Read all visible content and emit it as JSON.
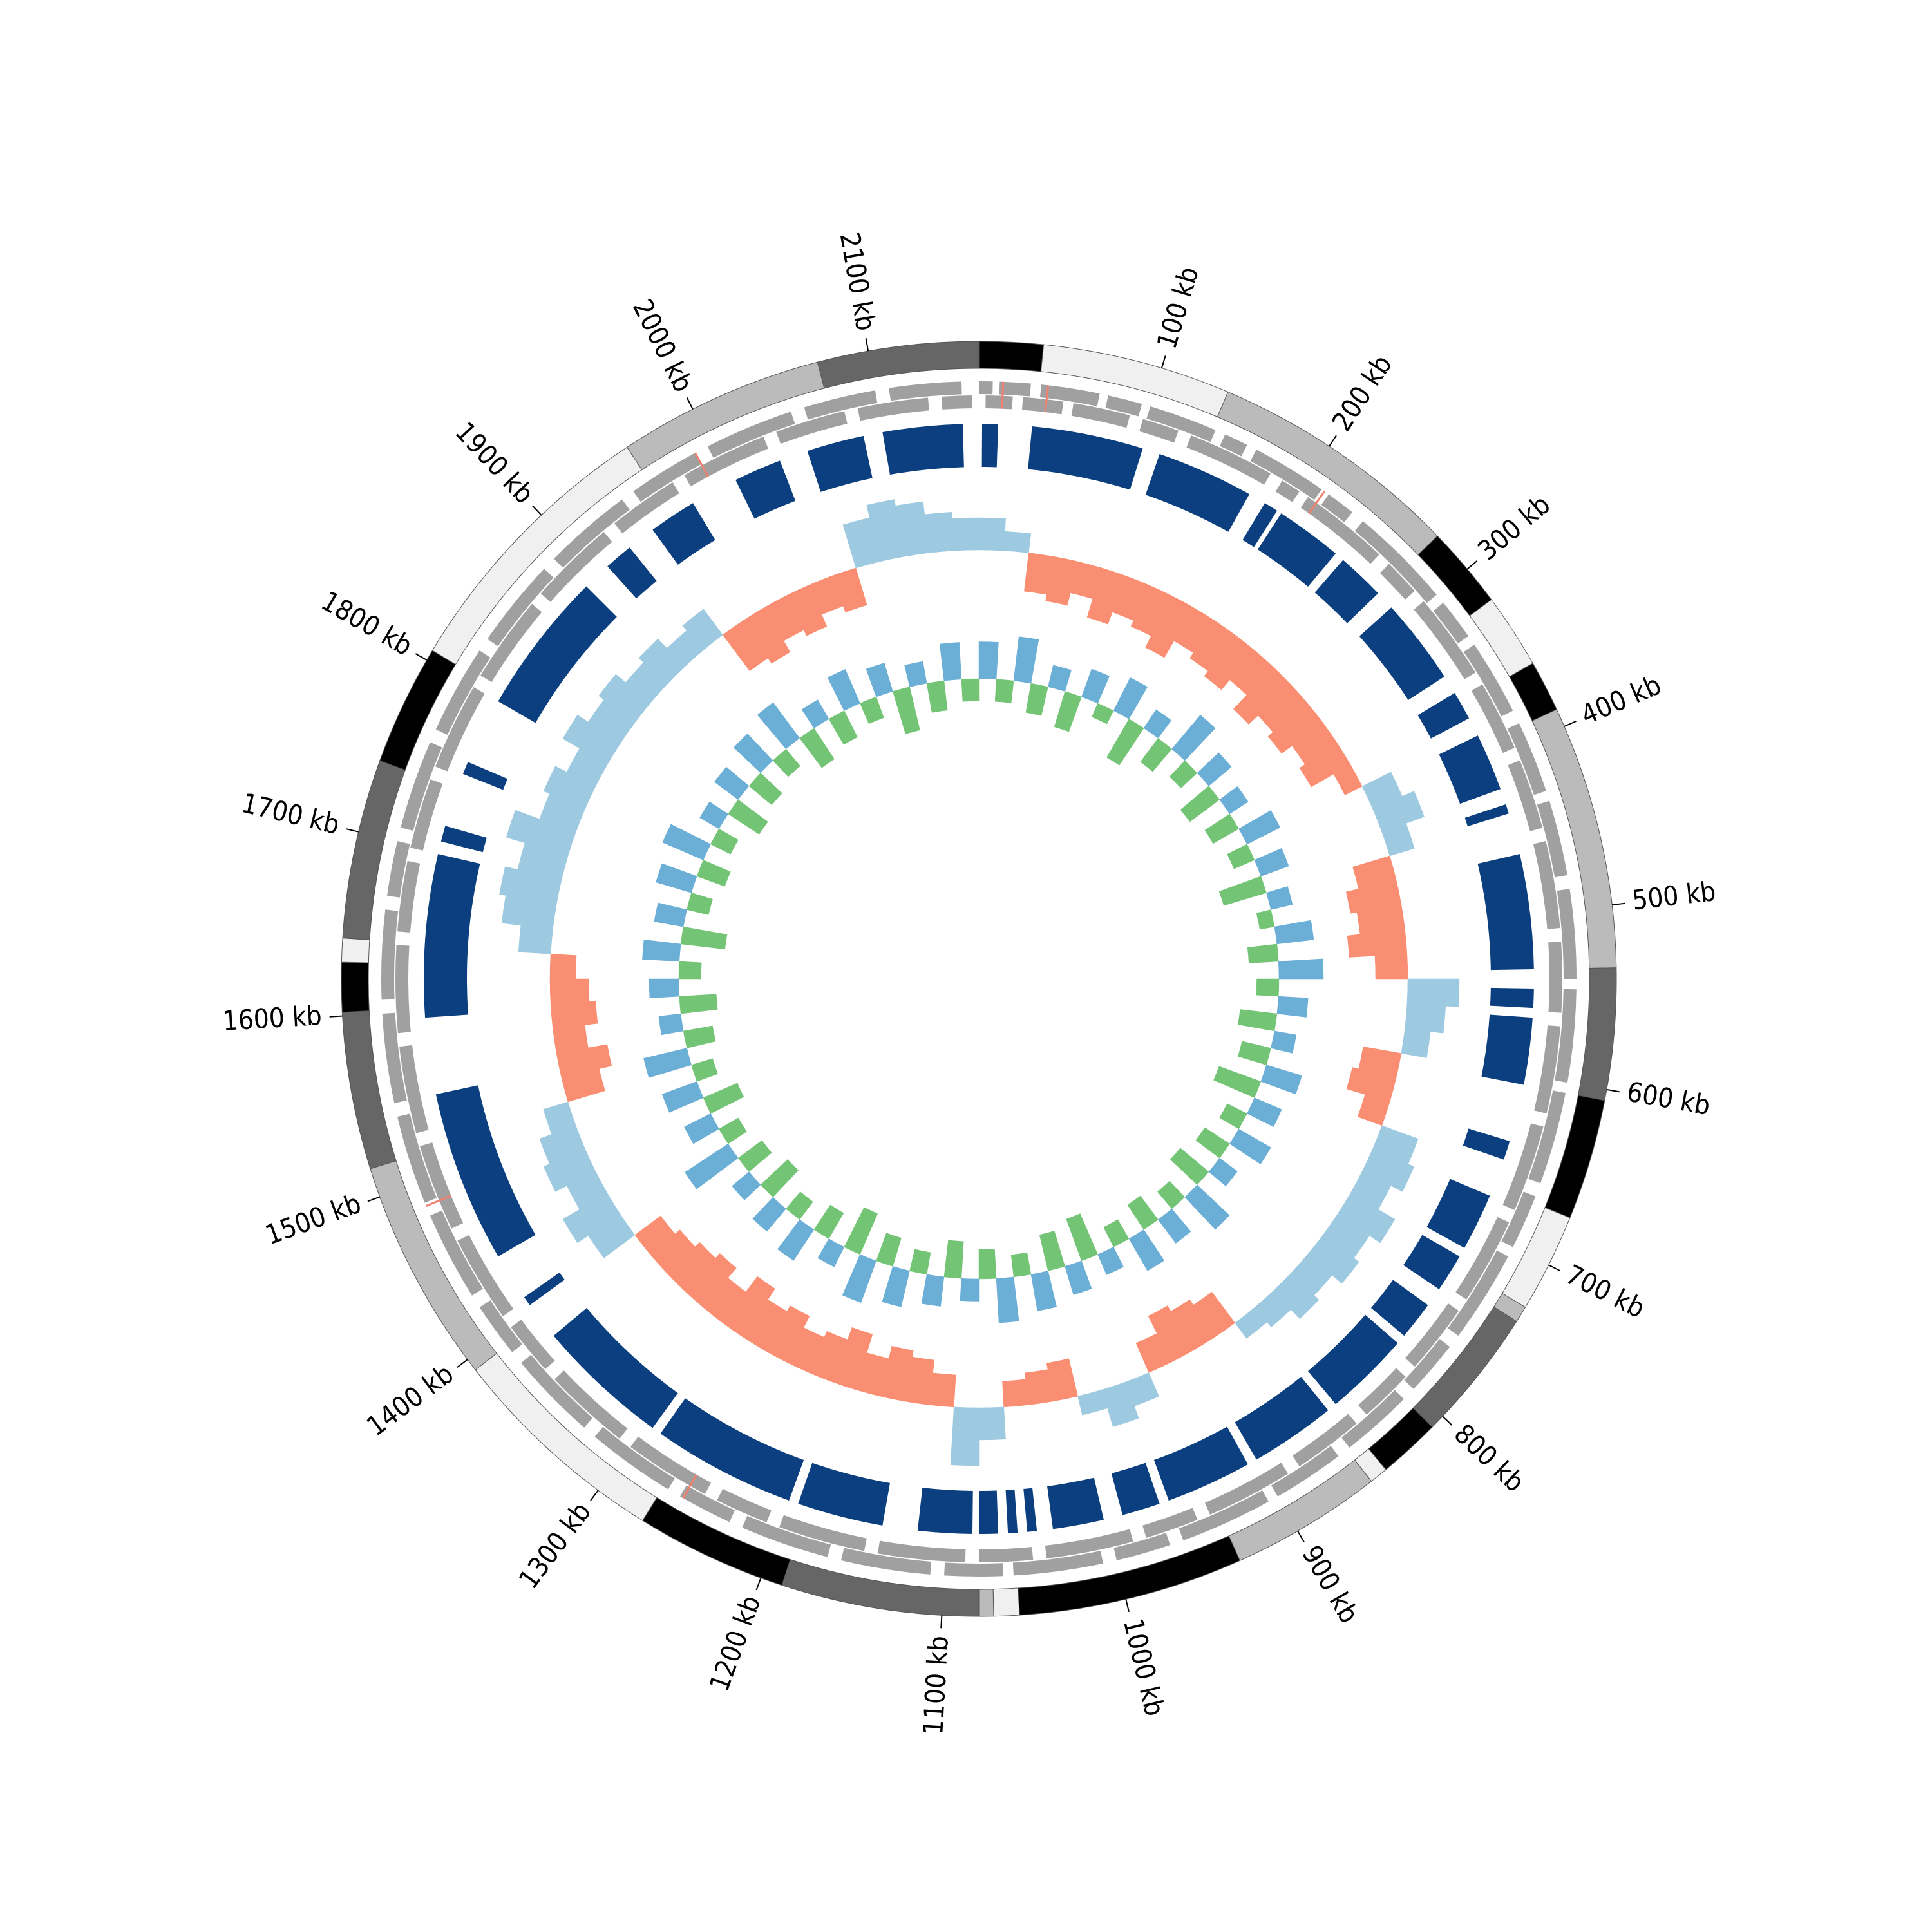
{
  "chart_data": {
    "type": "circular",
    "xlim": [
      0,
      2160
    ],
    "xticks": [
      {
        "value": 100,
        "label": "100 kb"
      },
      {
        "value": 200,
        "label": "200 kb"
      },
      {
        "value": 300,
        "label": "300 kb"
      },
      {
        "value": 400,
        "label": "400 kb"
      },
      {
        "value": 500,
        "label": "500 kb"
      },
      {
        "value": 600,
        "label": "600 kb"
      },
      {
        "value": 700,
        "label": "700 kb"
      },
      {
        "value": 800,
        "label": "800 kb"
      },
      {
        "value": 900,
        "label": "900 kb"
      },
      {
        "value": 1000,
        "label": "1000 kb"
      },
      {
        "value": 1100,
        "label": "1100 kb"
      },
      {
        "value": 1200,
        "label": "1200 kb"
      },
      {
        "value": 1300,
        "label": "1300 kb"
      },
      {
        "value": 1400,
        "label": "1400 kb"
      },
      {
        "value": 1500,
        "label": "1500 kb"
      },
      {
        "value": 1600,
        "label": "1600 kb"
      },
      {
        "value": 1700,
        "label": "1700 kb"
      },
      {
        "value": 1800,
        "label": "1800 kb"
      },
      {
        "value": 1900,
        "label": "1900 kb"
      },
      {
        "value": 2000,
        "label": "2000 kb"
      },
      {
        "value": 2100,
        "label": "2100 kb"
      }
    ],
    "bands": [
      {
        "start": 0,
        "end": 35,
        "color": "#000000"
      },
      {
        "start": 35,
        "end": 138,
        "color": "#f0f0f0"
      },
      {
        "start": 138,
        "end": 276,
        "color": "#bbbbbb"
      },
      {
        "start": 276,
        "end": 321,
        "color": "#000000"
      },
      {
        "start": 321,
        "end": 362,
        "color": "#f0f0f0"
      },
      {
        "start": 362,
        "end": 390,
        "color": "#000000"
      },
      {
        "start": 390,
        "end": 534,
        "color": "#bbbbbb"
      },
      {
        "start": 534,
        "end": 606,
        "color": "#666666"
      },
      {
        "start": 606,
        "end": 672,
        "color": "#000000"
      },
      {
        "start": 672,
        "end": 726,
        "color": "#f0f0f0"
      },
      {
        "start": 726,
        "end": 735,
        "color": "#bbbbbb"
      },
      {
        "start": 735,
        "end": 808,
        "color": "#666666"
      },
      {
        "start": 808,
        "end": 842,
        "color": "#000000"
      },
      {
        "start": 842,
        "end": 852,
        "color": "#f0f0f0"
      },
      {
        "start": 852,
        "end": 935,
        "color": "#bbbbbb"
      },
      {
        "start": 935,
        "end": 1058,
        "color": "#000000"
      },
      {
        "start": 1058,
        "end": 1072,
        "color": "#f0f0f0"
      },
      {
        "start": 1072,
        "end": 1080,
        "color": "#bbbbbb"
      },
      {
        "start": 1080,
        "end": 1188,
        "color": "#666666"
      },
      {
        "start": 1188,
        "end": 1271,
        "color": "#000000"
      },
      {
        "start": 1271,
        "end": 1393,
        "color": "#f0f0f0"
      },
      {
        "start": 1393,
        "end": 1516,
        "color": "#bbbbbb"
      },
      {
        "start": 1516,
        "end": 1602,
        "color": "#666666"
      },
      {
        "start": 1602,
        "end": 1629,
        "color": "#000000"
      },
      {
        "start": 1629,
        "end": 1642,
        "color": "#f0f0f0"
      },
      {
        "start": 1642,
        "end": 1740,
        "color": "#666666"
      },
      {
        "start": 1740,
        "end": 1806,
        "color": "#000000"
      },
      {
        "start": 1806,
        "end": 1959,
        "color": "#f0f0f0"
      },
      {
        "start": 1959,
        "end": 2072,
        "color": "#bbbbbb"
      },
      {
        "start": 2072,
        "end": 2160,
        "color": "#666666"
      }
    ],
    "gene_color": "#a0a0a0",
    "genes_forward": [
      [
        0,
        8
      ],
      [
        12,
        30
      ],
      [
        36,
        70
      ],
      [
        75,
        95
      ],
      [
        100,
        140
      ],
      [
        146,
        160
      ],
      [
        166,
        210
      ],
      [
        215,
        232
      ],
      [
        240,
        300
      ],
      [
        306,
        330
      ],
      [
        336,
        380
      ],
      [
        388,
        430
      ],
      [
        436,
        480
      ],
      [
        488,
        540
      ],
      [
        546,
        600
      ],
      [
        606,
        660
      ],
      [
        668,
        700
      ],
      [
        706,
        760
      ],
      [
        768,
        800
      ],
      [
        808,
        850
      ],
      [
        858,
        900
      ],
      [
        906,
        960
      ],
      [
        968,
        1000
      ],
      [
        1008,
        1060
      ],
      [
        1066,
        1100
      ],
      [
        1108,
        1160
      ],
      [
        1168,
        1220
      ],
      [
        1228,
        1260
      ],
      [
        1268,
        1320
      ],
      [
        1328,
        1380
      ],
      [
        1388,
        1420
      ],
      [
        1428,
        1480
      ],
      [
        1488,
        1540
      ],
      [
        1548,
        1600
      ],
      [
        1608,
        1660
      ],
      [
        1668,
        1700
      ],
      [
        1708,
        1760
      ],
      [
        1768,
        1820
      ],
      [
        1828,
        1880
      ],
      [
        1888,
        1940
      ],
      [
        1948,
        1990
      ],
      [
        1998,
        2050
      ],
      [
        2058,
        2100
      ],
      [
        2108,
        2150
      ]
    ],
    "genes_reverse": [
      [
        4,
        20
      ],
      [
        26,
        50
      ],
      [
        56,
        90
      ],
      [
        98,
        120
      ],
      [
        128,
        180
      ],
      [
        188,
        200
      ],
      [
        206,
        260
      ],
      [
        268,
        290
      ],
      [
        298,
        350
      ],
      [
        358,
        400
      ],
      [
        408,
        450
      ],
      [
        458,
        510
      ],
      [
        518,
        560
      ],
      [
        568,
        620
      ],
      [
        628,
        680
      ],
      [
        688,
        740
      ],
      [
        748,
        790
      ],
      [
        798,
        830
      ],
      [
        838,
        880
      ],
      [
        888,
        940
      ],
      [
        948,
        980
      ],
      [
        988,
        1040
      ],
      [
        1048,
        1080
      ],
      [
        1088,
        1140
      ],
      [
        1148,
        1200
      ],
      [
        1208,
        1240
      ],
      [
        1248,
        1300
      ],
      [
        1308,
        1360
      ],
      [
        1368,
        1400
      ],
      [
        1408,
        1460
      ],
      [
        1468,
        1520
      ],
      [
        1528,
        1580
      ],
      [
        1588,
        1640
      ],
      [
        1648,
        1690
      ],
      [
        1698,
        1740
      ],
      [
        1748,
        1800
      ],
      [
        1808,
        1860
      ],
      [
        1868,
        1920
      ],
      [
        1928,
        1970
      ],
      [
        1978,
        2030
      ],
      [
        2038,
        2080
      ],
      [
        2088,
        2130
      ],
      [
        2138,
        2156
      ]
    ],
    "rna_color": "#f08070",
    "rna_genes": [
      14,
      40,
      212,
      1258,
      1486,
      1990
    ],
    "block_color": "#0b3f7f",
    "blocks": [
      [
        2,
        12
      ],
      [
        33,
        103
      ],
      [
        114,
        175
      ],
      [
        186,
        195
      ],
      [
        198,
        240
      ],
      [
        246,
        276
      ],
      [
        288,
        342
      ],
      [
        354,
        372
      ],
      [
        384,
        420
      ],
      [
        430,
        436
      ],
      [
        462,
        534
      ],
      [
        546,
        558
      ],
      [
        564,
        606
      ],
      [
        642,
        654
      ],
      [
        678,
        714
      ],
      [
        720,
        744
      ],
      [
        756,
        780
      ],
      [
        786,
        840
      ],
      [
        846,
        900
      ],
      [
        906,
        960
      ],
      [
        966,
        990
      ],
      [
        1002,
        1034
      ],
      [
        1044,
        1050
      ],
      [
        1056,
        1062
      ],
      [
        1068,
        1080
      ],
      [
        1084,
        1118
      ],
      [
        1140,
        1194
      ],
      [
        1200,
        1290
      ],
      [
        1296,
        1380
      ],
      [
        1404,
        1410
      ],
      [
        1440,
        1548
      ],
      [
        1596,
        1698
      ],
      [
        1706,
        1716
      ],
      [
        1750,
        1758
      ],
      [
        1800,
        1890
      ],
      [
        1908,
        1926
      ],
      [
        1944,
        1974
      ],
      [
        2004,
        2034
      ],
      [
        2052,
        2088
      ],
      [
        2100,
        2150
      ]
    ],
    "gc_content": {
      "ylim": [
        -1,
        1
      ],
      "positive_color": "#9ecae1",
      "negative_color": "#f98e72",
      "values": [
        0.5,
        0.3,
        -0.6,
        -0.7,
        -0.5,
        -0.8,
        -0.6,
        -0.7,
        -0.9,
        -0.6,
        -0.7,
        -0.8,
        -0.6,
        -0.9,
        -0.7,
        -0.8,
        -0.6,
        -0.7,
        -0.3,
        0.5,
        0.7,
        0.4,
        -0.6,
        -0.8,
        -0.7,
        -0.9,
        -0.5,
        0.8,
        0.6,
        0.4,
        -0.6,
        -0.7,
        -0.4,
        0.6,
        0.7,
        0.5,
        0.8,
        0.6,
        0.7,
        0.5,
        0.6,
        0.4,
        0.3,
        -0.6,
        -0.7,
        -0.8,
        -0.5,
        0.4,
        0.6,
        0.3,
        -0.6,
        -0.5,
        -0.4,
        0.5,
        0.9,
        -0.5,
        -0.7,
        -0.8,
        -0.6,
        -0.9,
        -0.7,
        -0.6,
        -0.8,
        -0.7,
        -0.9,
        -0.6,
        -0.8,
        -0.7,
        -0.6,
        -0.5,
        0.6,
        0.8,
        0.5,
        0.7,
        0.6,
        0.4,
        -0.6,
        -0.8,
        -0.5,
        -0.7,
        -0.6,
        -0.4,
        0.5,
        0.8,
        0.9,
        0.7,
        1.0,
        0.6,
        0.7,
        0.5,
        0.8,
        0.6,
        0.7,
        0.5,
        0.6,
        0.4,
        0.5,
        -0.7,
        -0.8,
        -0.6,
        -0.7,
        -0.5,
        -0.6,
        0.7,
        0.9,
        0.8,
        0.6,
        0.5
      ]
    },
    "gc_skew": {
      "ylim": [
        -1,
        1
      ],
      "positive_color": "#6baed6",
      "negative_color": "#74c476",
      "values": [
        0.5,
        -0.3,
        0.6,
        -0.4,
        0.3,
        -0.5,
        0.4,
        -0.2,
        0.5,
        -0.6,
        0.3,
        -0.4,
        0.6,
        -0.3,
        0.4,
        -0.5,
        0.3,
        -0.4,
        0.5,
        -0.3,
        0.4,
        -0.6,
        0.3,
        -0.2,
        0.5,
        -0.4,
        0.6,
        -0.3,
        0.4,
        -0.5,
        0.3,
        -0.4,
        0.5,
        -0.6,
        0.4,
        -0.3,
        0.5,
        -0.4,
        0.3,
        -0.5,
        0.6,
        -0.3,
        0.4,
        -0.4,
        0.5,
        -0.3,
        0.3,
        -0.6,
        0.4,
        -0.5,
        0.5,
        -0.3,
        0.6,
        -0.4,
        0.3,
        -0.5,
        0.4,
        -0.3,
        0.5,
        -0.4,
        0.6,
        -0.6,
        0.3,
        -0.4,
        0.5,
        -0.3,
        0.4,
        -0.5,
        0.3,
        -0.4,
        0.7,
        -0.3,
        0.4,
        -0.5,
        0.5,
        -0.3,
        0.6,
        -0.4,
        0.3,
        -0.5,
        0.4,
        -0.3,
        0.5,
        -0.6,
        0.4,
        -0.3,
        0.5,
        -0.4,
        0.6,
        -0.3,
        0.3,
        -0.5,
        0.4,
        -0.4,
        0.5,
        -0.3,
        0.6,
        -0.5,
        0.3,
        -0.4,
        0.5,
        -0.3,
        0.4,
        -0.6,
        0.3,
        -0.4,
        0.5,
        -0.3
      ]
    }
  }
}
